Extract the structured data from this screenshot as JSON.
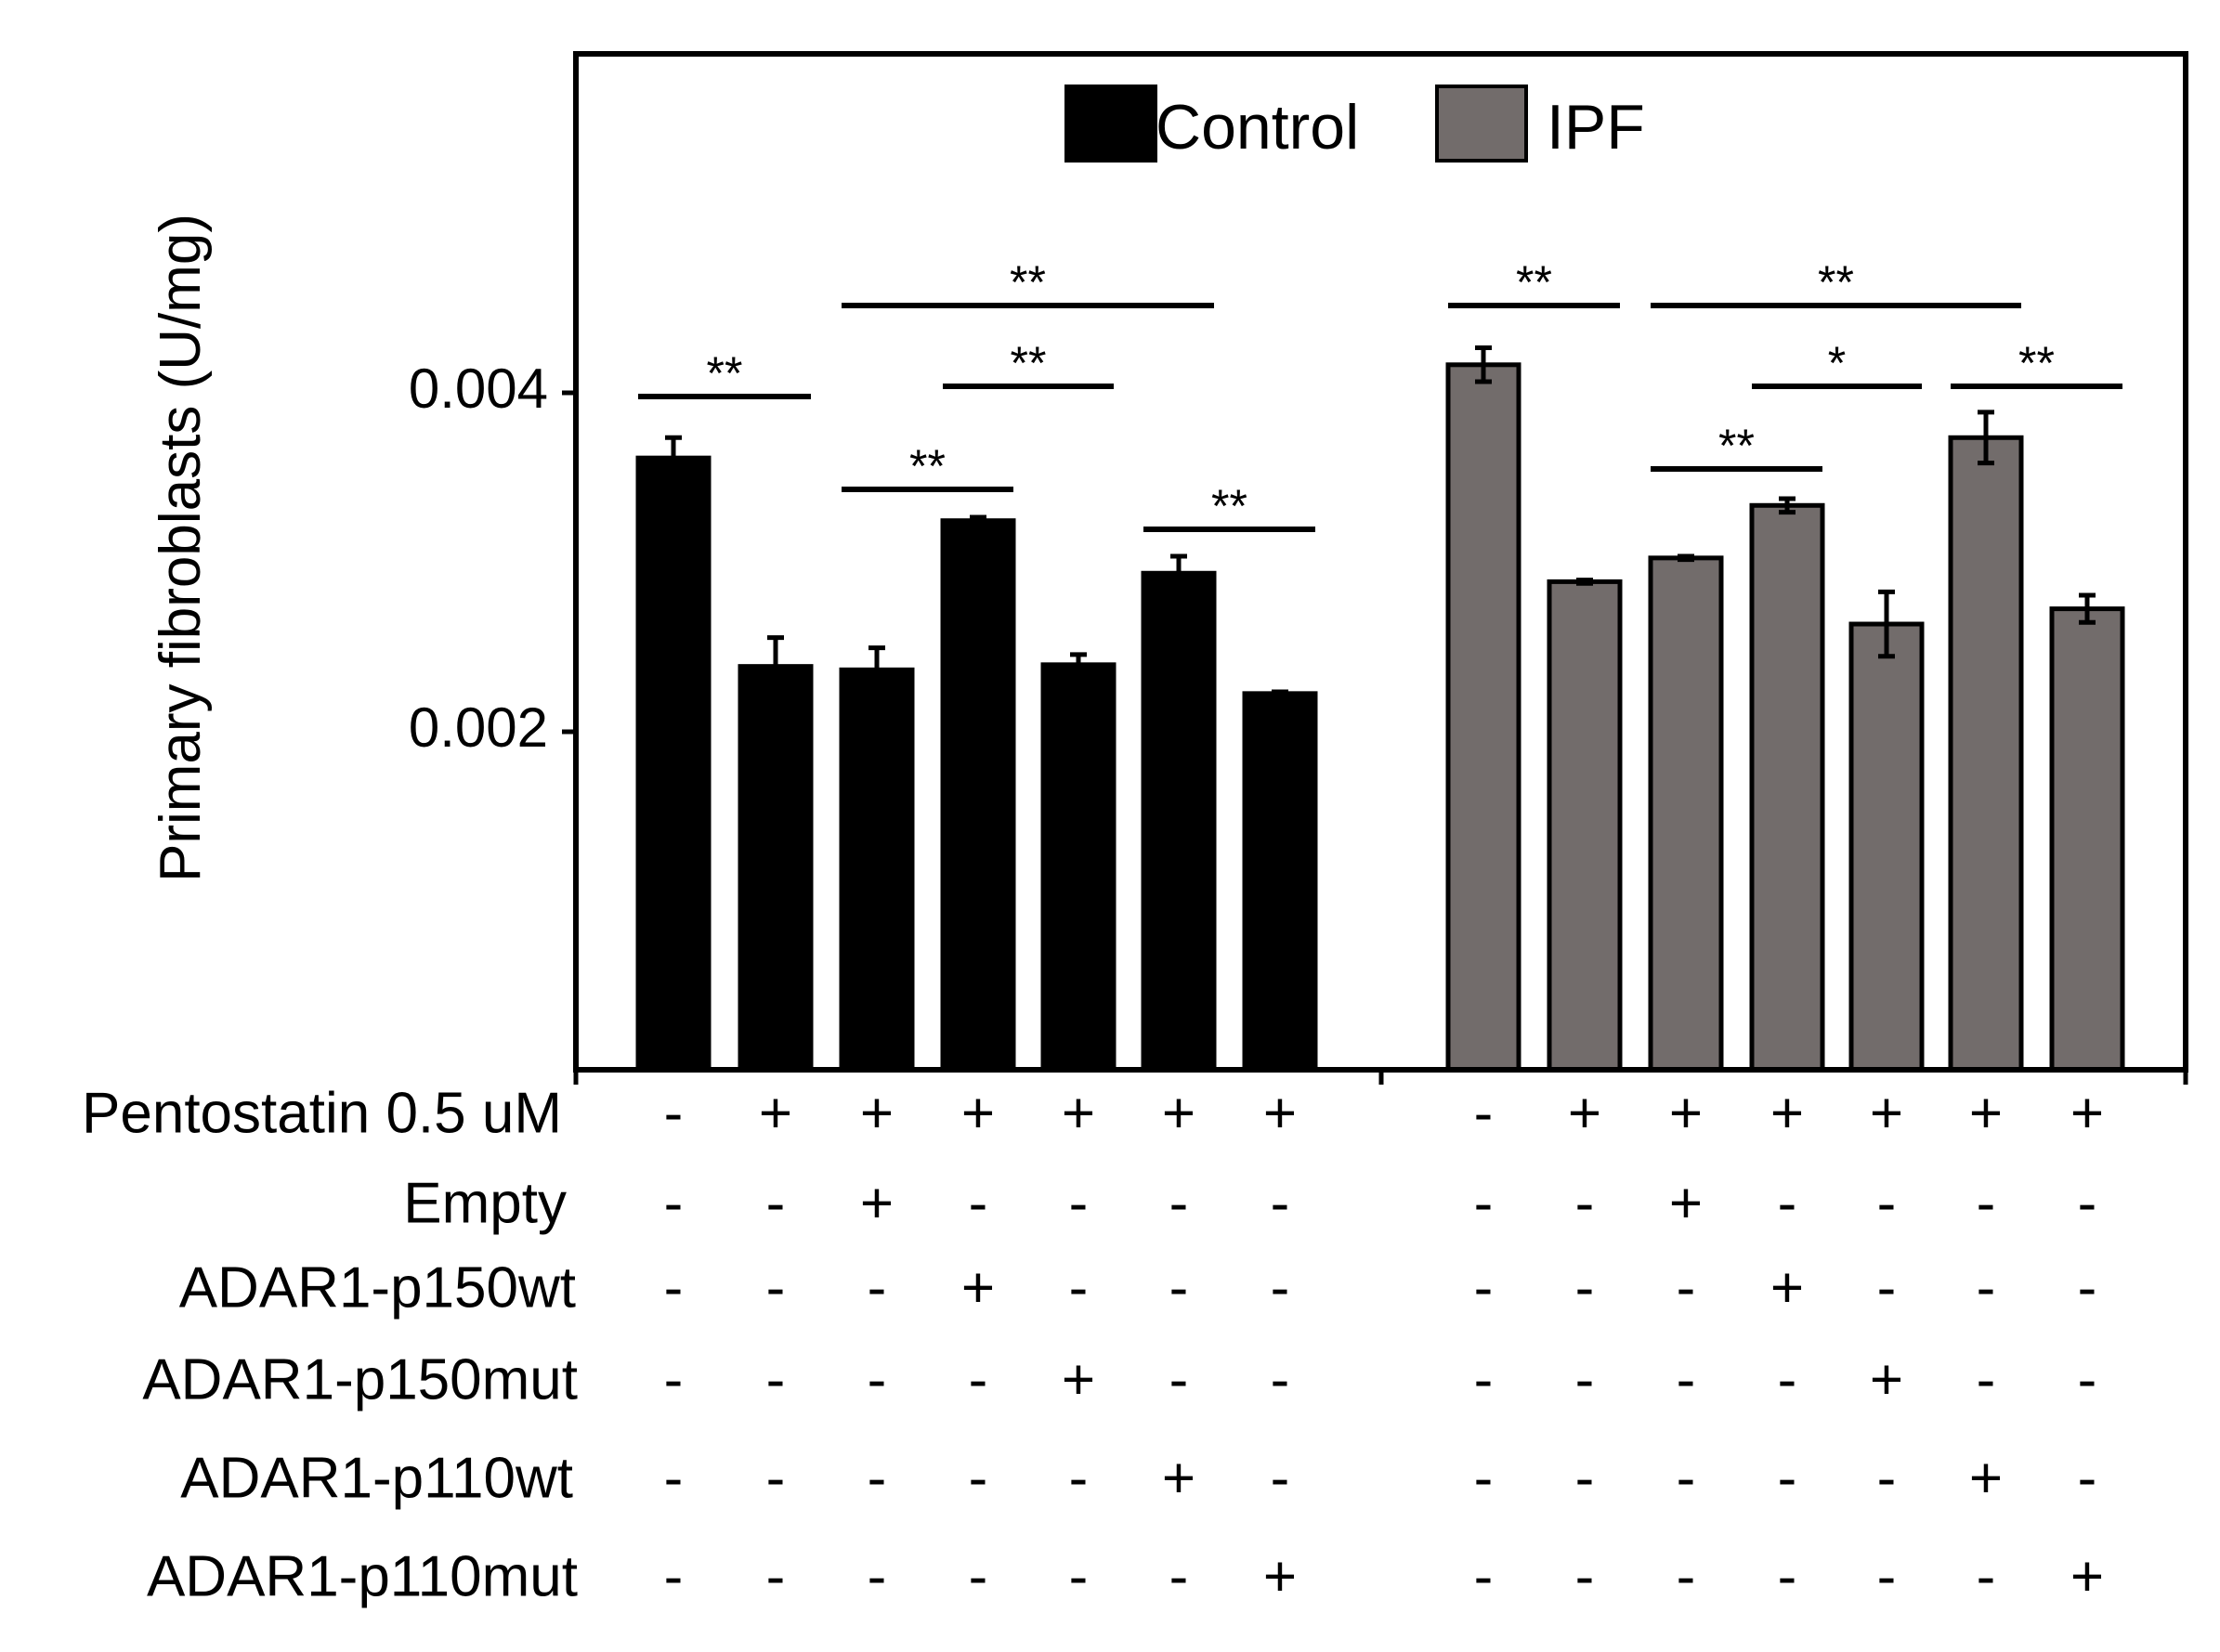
{
  "chart_data": {
    "type": "bar",
    "ylabel": "Primary fibroblasts (U/mg)",
    "ylim": [
      0,
      0.006
    ],
    "yticks": [
      0.002,
      0.004
    ],
    "ytick_labels": [
      "0.002",
      "0.004"
    ],
    "legend": {
      "placement": "top-center",
      "entries": [
        "Control",
        "IPF"
      ]
    },
    "colors": {
      "Control": "#000000",
      "IPF": "#726c6b"
    },
    "series": [
      {
        "name": "Control",
        "values": [
          0.00361,
          0.00238,
          0.00236,
          0.00324,
          0.00239,
          0.00293,
          0.00222
        ],
        "errors": [
          0.00012,
          0.00017,
          0.00013,
          2e-05,
          6e-05,
          0.0001,
          1e-05
        ]
      },
      {
        "name": "IPF",
        "values": [
          0.00416,
          0.00288,
          0.00302,
          0.00333,
          0.00263,
          0.00373,
          0.00272
        ],
        "errors": [
          0.0001,
          1e-05,
          1e-05,
          4e-05,
          0.00019,
          0.00015,
          8e-05
        ]
      }
    ],
    "conditions": [
      {
        "label": "Pentostatin 0.5 uM",
        "values": [
          "-",
          "+",
          "+",
          "+",
          "+",
          "+",
          "+",
          "-",
          "+",
          "+",
          "+",
          "+",
          "+",
          "+"
        ]
      },
      {
        "label": "Empty",
        "values": [
          "-",
          "-",
          "+",
          "-",
          "-",
          "-",
          "-",
          "-",
          "-",
          "+",
          "-",
          "-",
          "-",
          "-"
        ]
      },
      {
        "label": "ADAR1-p150wt",
        "values": [
          "-",
          "-",
          "-",
          "+",
          "-",
          "-",
          "-",
          "-",
          "-",
          "-",
          "+",
          "-",
          "-",
          "-"
        ]
      },
      {
        "label": "ADAR1-p150mut",
        "values": [
          "-",
          "-",
          "-",
          "-",
          "+",
          "-",
          "-",
          "-",
          "-",
          "-",
          "-",
          "+",
          "-",
          "-"
        ]
      },
      {
        "label": "ADAR1-p110wt",
        "values": [
          "-",
          "-",
          "-",
          "-",
          "-",
          "+",
          "-",
          "-",
          "-",
          "-",
          "-",
          "-",
          "+",
          "-"
        ]
      },
      {
        "label": "ADAR1-p110mut",
        "values": [
          "-",
          "-",
          "-",
          "-",
          "-",
          "-",
          "+",
          "-",
          "-",
          "-",
          "-",
          "-",
          "-",
          "+"
        ]
      }
    ],
    "significance": [
      {
        "from": 0,
        "to": 1,
        "label": "**"
      },
      {
        "from": 2,
        "to": 3,
        "label": "**"
      },
      {
        "from": 3,
        "to": 4,
        "label": "**"
      },
      {
        "from": 2,
        "to": 5,
        "label": "**"
      },
      {
        "from": 5,
        "to": 6,
        "label": "**"
      },
      {
        "from": 7,
        "to": 8,
        "label": "**"
      },
      {
        "from": 9,
        "to": 10,
        "label": "**"
      },
      {
        "from": 10,
        "to": 11,
        "label": "*"
      },
      {
        "from": 9,
        "to": 12,
        "label": "**"
      },
      {
        "from": 12,
        "to": 13,
        "label": "**"
      }
    ]
  }
}
